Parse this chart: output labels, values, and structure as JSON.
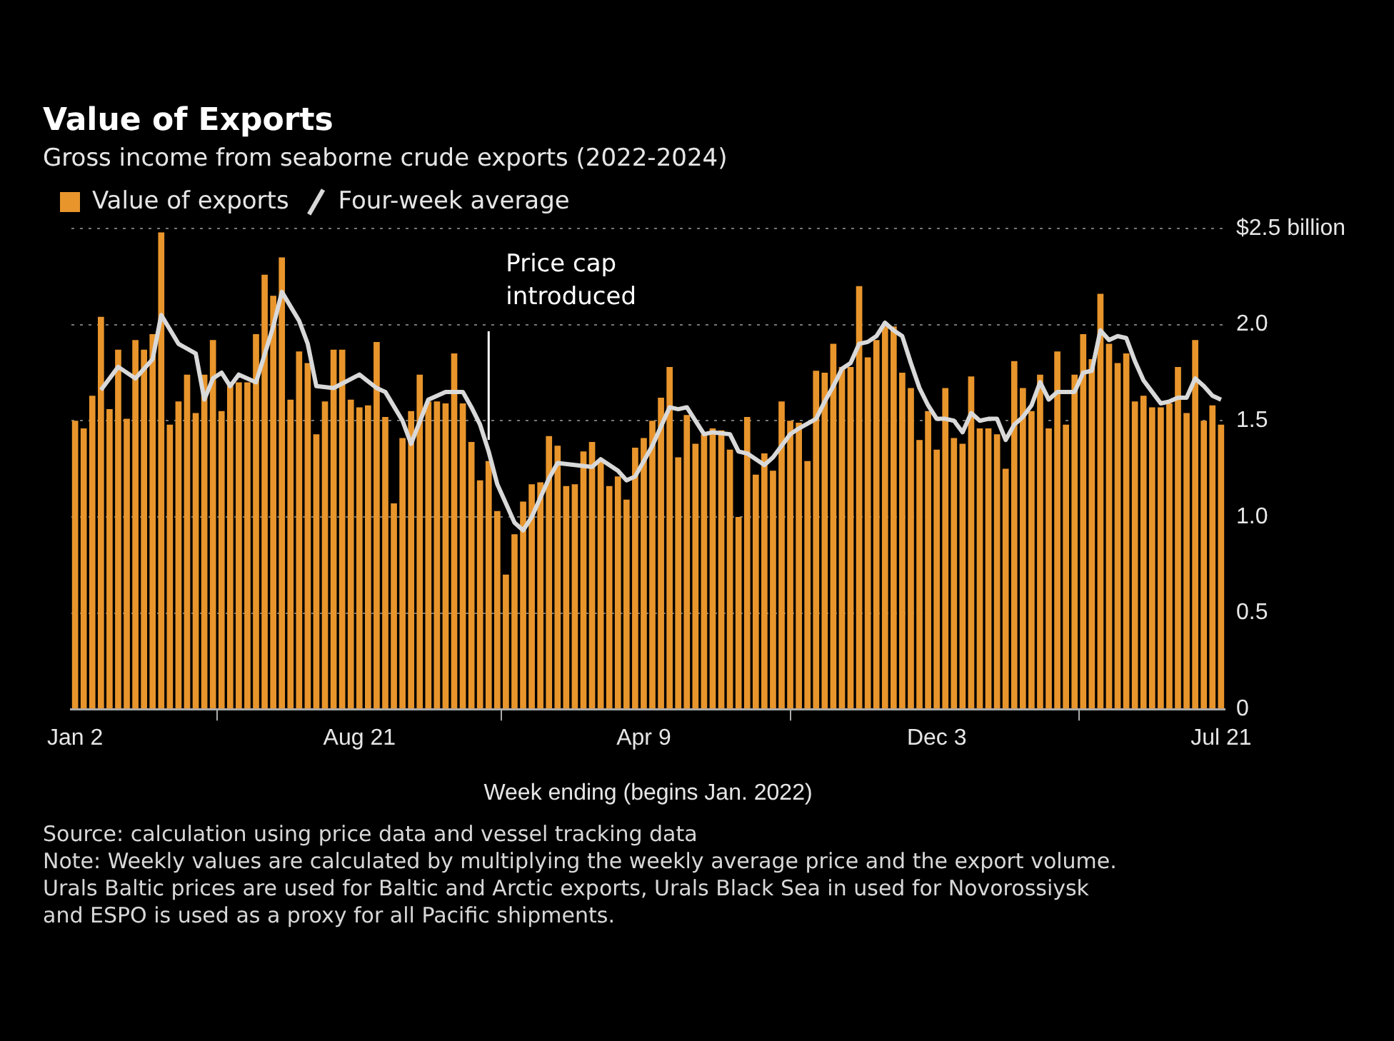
{
  "chart_data": {
    "type": "bar",
    "title": "Value of Exports",
    "subtitle": "Gross income from seaborne crude exports (2022-2024)",
    "xlabel": "Week ending (begins Jan. 2022)",
    "x": [
      "2022-01-02",
      "2022-01-09",
      "2022-01-16",
      "2022-01-23",
      "2022-01-30",
      "2022-02-06",
      "2022-02-13",
      "2022-02-20",
      "2022-02-27",
      "2022-03-06",
      "2022-03-13",
      "2022-03-20",
      "2022-03-27",
      "2022-04-03",
      "2022-04-10",
      "2022-04-17",
      "2022-04-24",
      "2022-05-01",
      "2022-05-08",
      "2022-05-15",
      "2022-05-22",
      "2022-05-29",
      "2022-06-05",
      "2022-06-12",
      "2022-06-19",
      "2022-06-26",
      "2022-07-03",
      "2022-07-10",
      "2022-07-17",
      "2022-07-24",
      "2022-07-31",
      "2022-08-07",
      "2022-08-14",
      "2022-08-21",
      "2022-08-28",
      "2022-09-04",
      "2022-09-11",
      "2022-09-18",
      "2022-09-25",
      "2022-10-02",
      "2022-10-09",
      "2022-10-16",
      "2022-10-23",
      "2022-10-30",
      "2022-11-06",
      "2022-11-13",
      "2022-11-20",
      "2022-11-27",
      "2022-12-04",
      "2022-12-11",
      "2022-12-18",
      "2022-12-25",
      "2023-01-01",
      "2023-01-08",
      "2023-01-15",
      "2023-01-22",
      "2023-01-29",
      "2023-02-05",
      "2023-02-12",
      "2023-02-19",
      "2023-02-26",
      "2023-03-05",
      "2023-03-12",
      "2023-03-19",
      "2023-03-26",
      "2023-04-02",
      "2023-04-09",
      "2023-04-16",
      "2023-04-23",
      "2023-04-30",
      "2023-05-07",
      "2023-05-14",
      "2023-05-21",
      "2023-05-28",
      "2023-06-04",
      "2023-06-11",
      "2023-06-18",
      "2023-06-25",
      "2023-07-02",
      "2023-07-09",
      "2023-07-16",
      "2023-07-23",
      "2023-07-30",
      "2023-08-06",
      "2023-08-13",
      "2023-08-20",
      "2023-08-27",
      "2023-09-03",
      "2023-09-10",
      "2023-09-17",
      "2023-09-24",
      "2023-10-01",
      "2023-10-08",
      "2023-10-15",
      "2023-10-22",
      "2023-10-29",
      "2023-11-05",
      "2023-11-12",
      "2023-11-19",
      "2023-11-26",
      "2023-12-03",
      "2023-12-10",
      "2023-12-17",
      "2023-12-24",
      "2023-12-31",
      "2024-01-07",
      "2024-01-14",
      "2024-01-21",
      "2024-01-28",
      "2024-02-04",
      "2024-02-11",
      "2024-02-18",
      "2024-02-25",
      "2024-03-03",
      "2024-03-10",
      "2024-03-17",
      "2024-03-24",
      "2024-03-31",
      "2024-04-07",
      "2024-04-14",
      "2024-04-21",
      "2024-04-28",
      "2024-05-05",
      "2024-05-12",
      "2024-05-19",
      "2024-05-26",
      "2024-06-02",
      "2024-06-09",
      "2024-06-16",
      "2024-06-23",
      "2024-06-30",
      "2024-07-07",
      "2024-07-14",
      "2024-07-21"
    ],
    "series": [
      {
        "name": "Value of exports",
        "color": "#e8952c",
        "values": [
          1.5,
          1.46,
          1.63,
          2.04,
          1.56,
          1.87,
          1.51,
          1.92,
          1.87,
          1.95,
          2.48,
          1.48,
          1.6,
          1.74,
          1.54,
          1.74,
          1.92,
          1.55,
          1.7,
          1.7,
          1.7,
          1.95,
          2.26,
          2.15,
          2.35,
          1.61,
          1.86,
          1.8,
          1.43,
          1.6,
          1.87,
          1.87,
          1.61,
          1.57,
          1.58,
          1.91,
          1.52,
          1.07,
          1.41,
          1.55,
          1.74,
          1.6,
          1.6,
          1.59,
          1.85,
          1.59,
          1.39,
          1.19,
          1.29,
          1.03,
          0.7,
          0.91,
          1.08,
          1.17,
          1.18,
          1.42,
          1.37,
          1.16,
          1.17,
          1.34,
          1.39,
          1.3,
          1.16,
          1.21,
          1.09,
          1.36,
          1.41,
          1.5,
          1.62,
          1.78,
          1.31,
          1.53,
          1.38,
          1.43,
          1.46,
          1.45,
          1.35,
          1.0,
          1.52,
          1.22,
          1.33,
          1.24,
          1.6,
          1.5,
          1.49,
          1.29,
          1.76,
          1.75,
          1.9,
          1.78,
          1.78,
          2.2,
          1.83,
          1.92,
          1.99,
          1.99,
          1.75,
          1.67,
          1.4,
          1.55,
          1.35,
          1.67,
          1.41,
          1.38,
          1.73,
          1.46,
          1.46,
          1.43,
          1.25,
          1.81,
          1.67,
          1.55,
          1.74,
          1.46,
          1.86,
          1.48,
          1.74,
          1.95,
          1.82,
          2.16,
          1.9,
          1.8,
          1.85,
          1.6,
          1.63,
          1.57,
          1.57,
          1.59,
          1.78,
          1.54,
          1.92,
          1.5,
          1.58,
          1.48
        ]
      },
      {
        "name": "Four-week average",
        "type": "line",
        "color": "#d9d9d9",
        "x": [
          "2022-01-23",
          "2022-02-06",
          "2022-02-20",
          "2022-03-06",
          "2022-03-13",
          "2022-03-27",
          "2022-04-10",
          "2022-04-17",
          "2022-04-24",
          "2022-05-01",
          "2022-05-08",
          "2022-05-15",
          "2022-05-29",
          "2022-06-12",
          "2022-06-19",
          "2022-07-03",
          "2022-07-10",
          "2022-07-17",
          "2022-07-31",
          "2022-08-21",
          "2022-09-04",
          "2022-09-11",
          "2022-09-25",
          "2022-10-02",
          "2022-10-16",
          "2022-10-30",
          "2022-11-13",
          "2022-11-20",
          "2022-11-27",
          "2022-12-04",
          "2022-12-11",
          "2022-12-25",
          "2023-01-01",
          "2023-01-08",
          "2023-01-22",
          "2023-01-29",
          "2023-02-12",
          "2023-02-26",
          "2023-03-05",
          "2023-03-19",
          "2023-03-26",
          "2023-04-02",
          "2023-04-16",
          "2023-04-30",
          "2023-05-07",
          "2023-05-14",
          "2023-05-28",
          "2023-06-04",
          "2023-06-18",
          "2023-06-25",
          "2023-07-02",
          "2023-07-16",
          "2023-07-23",
          "2023-08-06",
          "2023-08-13",
          "2023-08-27",
          "2023-09-03",
          "2023-09-10",
          "2023-09-17",
          "2023-09-24",
          "2023-10-01",
          "2023-10-08",
          "2023-10-15",
          "2023-10-22",
          "2023-10-29",
          "2023-11-05",
          "2023-11-12",
          "2023-11-19",
          "2023-11-26",
          "2023-12-03",
          "2023-12-10",
          "2023-12-17",
          "2023-12-24",
          "2023-12-31",
          "2024-01-07",
          "2024-01-14",
          "2024-01-21",
          "2024-01-28",
          "2024-02-04",
          "2024-02-11",
          "2024-02-18",
          "2024-02-25",
          "2024-03-03",
          "2024-03-10",
          "2024-03-17",
          "2024-03-24",
          "2024-03-31",
          "2024-04-07",
          "2024-04-14",
          "2024-04-21",
          "2024-04-28",
          "2024-05-05",
          "2024-05-12",
          "2024-05-19",
          "2024-05-26",
          "2024-06-02",
          "2024-06-09",
          "2024-06-16",
          "2024-06-23",
          "2024-06-30",
          "2024-07-07",
          "2024-07-14",
          "2024-07-21"
        ],
        "values": [
          1.66,
          1.78,
          1.72,
          1.82,
          2.05,
          1.9,
          1.85,
          1.61,
          1.72,
          1.75,
          1.68,
          1.74,
          1.7,
          1.99,
          2.17,
          2.02,
          1.9,
          1.68,
          1.67,
          1.74,
          1.67,
          1.65,
          1.5,
          1.38,
          1.61,
          1.65,
          1.65,
          1.57,
          1.48,
          1.34,
          1.17,
          0.97,
          0.93,
          1.0,
          1.2,
          1.28,
          1.27,
          1.26,
          1.3,
          1.24,
          1.19,
          1.21,
          1.37,
          1.57,
          1.56,
          1.57,
          1.43,
          1.44,
          1.43,
          1.34,
          1.33,
          1.27,
          1.31,
          1.43,
          1.46,
          1.51,
          1.6,
          1.68,
          1.77,
          1.8,
          1.9,
          1.91,
          1.94,
          2.01,
          1.97,
          1.94,
          1.8,
          1.67,
          1.58,
          1.51,
          1.51,
          1.5,
          1.44,
          1.54,
          1.5,
          1.51,
          1.51,
          1.4,
          1.48,
          1.52,
          1.58,
          1.7,
          1.61,
          1.65,
          1.65,
          1.65,
          1.75,
          1.76,
          1.97,
          1.92,
          1.94,
          1.93,
          1.81,
          1.71,
          1.65,
          1.59,
          1.6,
          1.62,
          1.62,
          1.72,
          1.68,
          1.63,
          1.61
        ]
      }
    ],
    "xlim": [
      "2021-12-30",
      "2024-07-24"
    ],
    "xticks": [
      {
        "value": "2022-01-02",
        "label": "Jan 2"
      },
      {
        "value": "2022-08-21",
        "label": "Aug 21"
      },
      {
        "value": "2023-04-09",
        "label": "Apr 9"
      },
      {
        "value": "2023-12-03",
        "label": "Dec 3"
      },
      {
        "value": "2024-07-21",
        "label": "Jul 21"
      }
    ],
    "ylim": [
      0,
      2.5
    ],
    "yticks": [
      0,
      0.5,
      {
        "value": 1,
        "label": "1.0"
      },
      1.5,
      {
        "value": 2,
        "label": "2.0"
      },
      {
        "value": 2.5,
        "label": "$2.5 billion"
      }
    ],
    "grid": "y",
    "legend": "top left",
    "ref_lines": [
      {
        "axis": "x",
        "value": "2022-12-04",
        "label": "Price cap introduced",
        "color": "#ffffff"
      }
    ],
    "annotations": [
      "Source: calculation using price data and vessel tracking data",
      "Note: Weekly values are calculated by multiplying the weekly average price and the export volume. Urals Baltic prices are used for Baltic and Arctic exports, Urals Black Sea in used for Novorossiysk and ESPO is used as a proxy for all Pacific shipments."
    ]
  }
}
